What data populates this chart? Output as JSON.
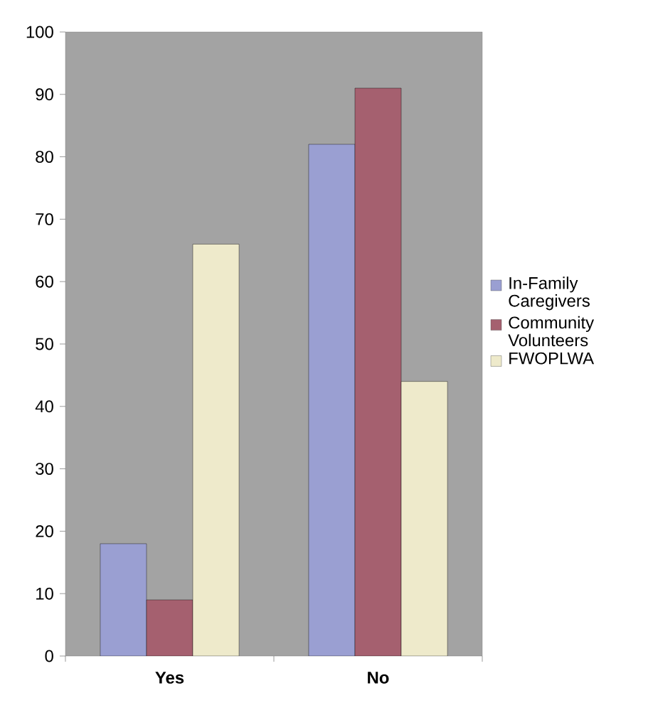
{
  "chart_data": {
    "type": "bar",
    "categories": [
      "Yes",
      "No"
    ],
    "series": [
      {
        "name": "In-Family Caregivers",
        "color": "#9a9fd2",
        "values": [
          18,
          82
        ]
      },
      {
        "name": "Community Volunteers",
        "color": "#a5606f",
        "values": [
          9,
          91
        ]
      },
      {
        "name": "FWOPLWA",
        "color": "#eeeacb",
        "values": [
          66,
          44
        ]
      }
    ],
    "ylim": [
      0,
      100
    ],
    "yticks": [
      0,
      10,
      20,
      30,
      40,
      50,
      60,
      70,
      80,
      90,
      100
    ],
    "grid": false,
    "legend": "right"
  }
}
